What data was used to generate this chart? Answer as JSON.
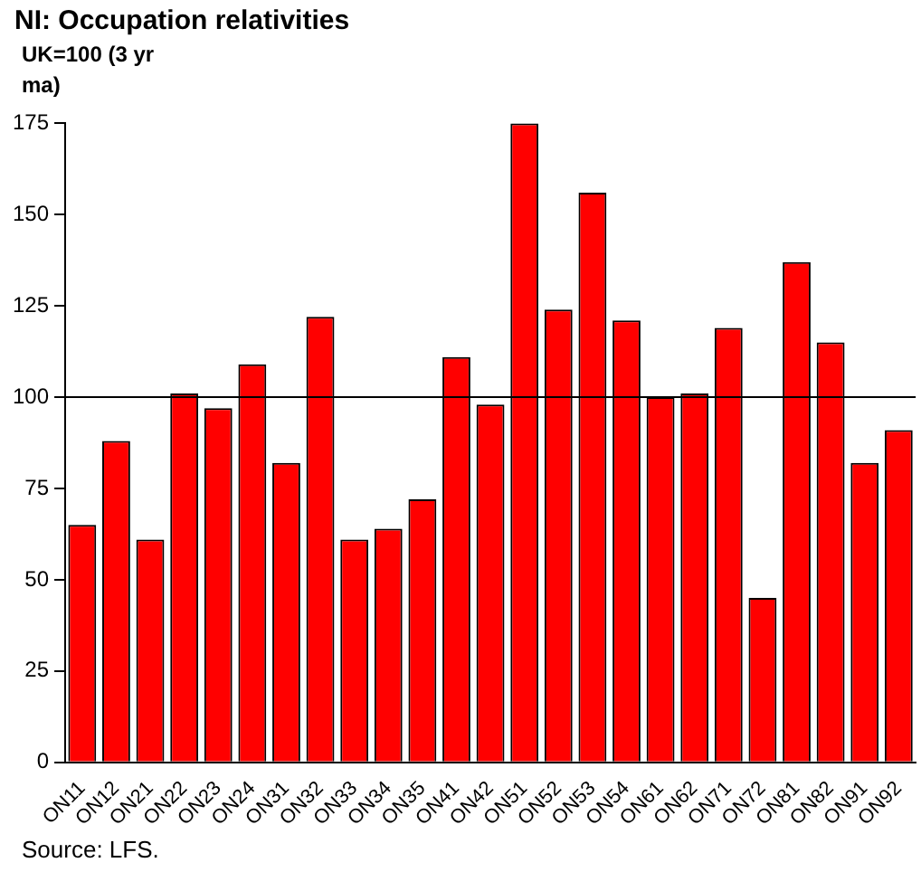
{
  "chart_data": {
    "type": "bar",
    "title": "NI: Occupation relativities",
    "ylabel": "UK=100 (3 yr ma)",
    "categories": [
      "ON11",
      "ON12",
      "ON21",
      "ON22",
      "ON23",
      "ON24",
      "ON31",
      "ON32",
      "ON33",
      "ON34",
      "ON35",
      "ON41",
      "ON42",
      "ON51",
      "ON52",
      "ON53",
      "ON54",
      "ON61",
      "ON62",
      "ON71",
      "ON72",
      "ON81",
      "ON82",
      "ON91",
      "ON92"
    ],
    "values": [
      65,
      88,
      61,
      101,
      97,
      109,
      82,
      122,
      61,
      64,
      72,
      111,
      98,
      175,
      124,
      156,
      121,
      100,
      101,
      119,
      45,
      137,
      115,
      82,
      91
    ],
    "color": "#ff0000",
    "ylim": [
      0,
      175
    ],
    "yticks": [
      0,
      25,
      50,
      75,
      100,
      125,
      150,
      175
    ],
    "grid": false,
    "legend": false,
    "ref_lines": [
      {
        "axis": "y",
        "value": 100,
        "color": "#000000"
      }
    ],
    "annotations": [
      "Source: LFS."
    ]
  }
}
